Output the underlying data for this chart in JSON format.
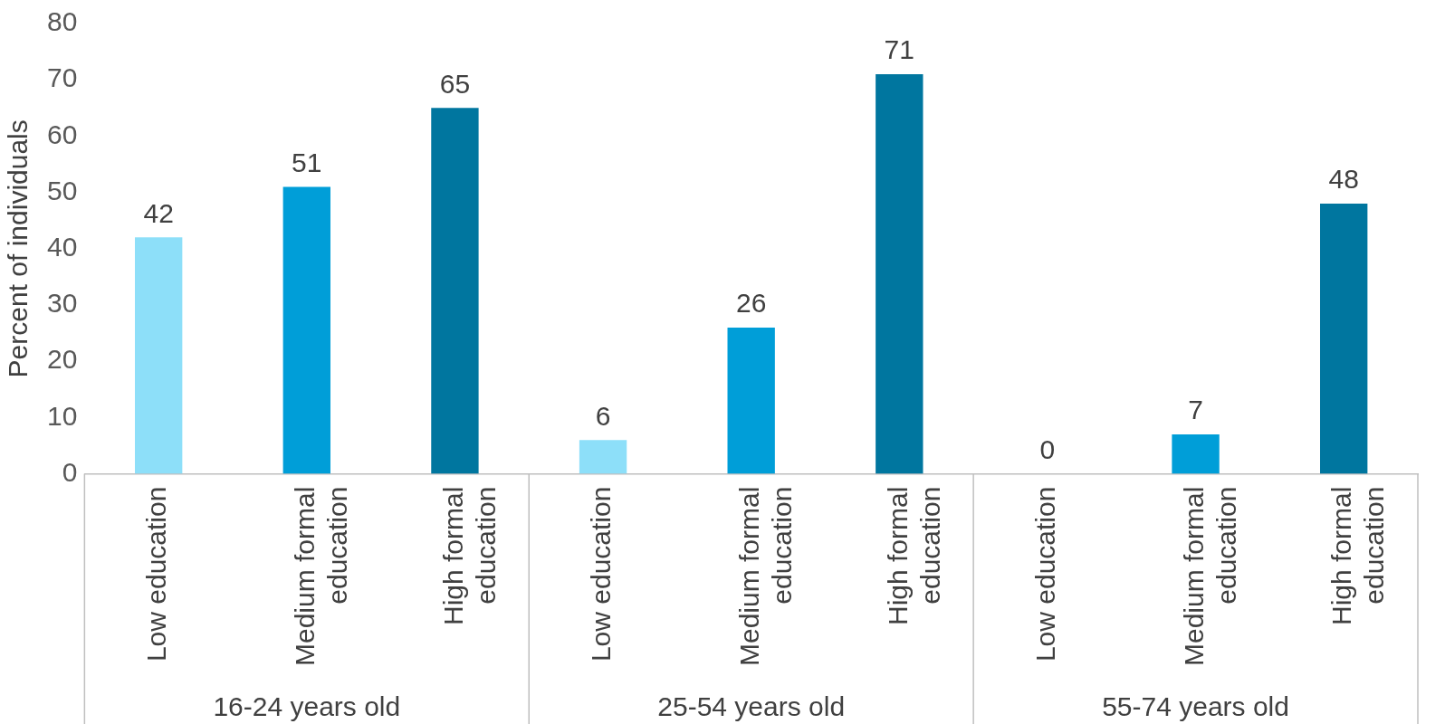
{
  "chart_data": {
    "type": "bar",
    "ylabel": "Percent of individuals",
    "categories": [
      "Low education",
      "Medium formal education",
      "High formal education",
      "Low education",
      "Medium formal education",
      "High formal education",
      "Low education",
      "Medium formal education",
      "High formal education"
    ],
    "values": [
      42,
      51,
      65,
      6,
      26,
      71,
      0,
      7,
      48
    ],
    "colors": [
      "#8ddff9",
      "#009ed8",
      "#00769f",
      "#8ddff9",
      "#009ed8",
      "#00769f",
      "#8ddff9",
      "#009ed8",
      "#00769f"
    ],
    "ylim": [
      0,
      80
    ],
    "yticks": [
      0,
      10,
      20,
      30,
      40,
      50,
      60,
      70,
      80
    ],
    "data_labels": true,
    "grid": false,
    "legend": false,
    "annotations": [
      "16-24 years old",
      "25-54 years old",
      "55-74 years old"
    ]
  }
}
